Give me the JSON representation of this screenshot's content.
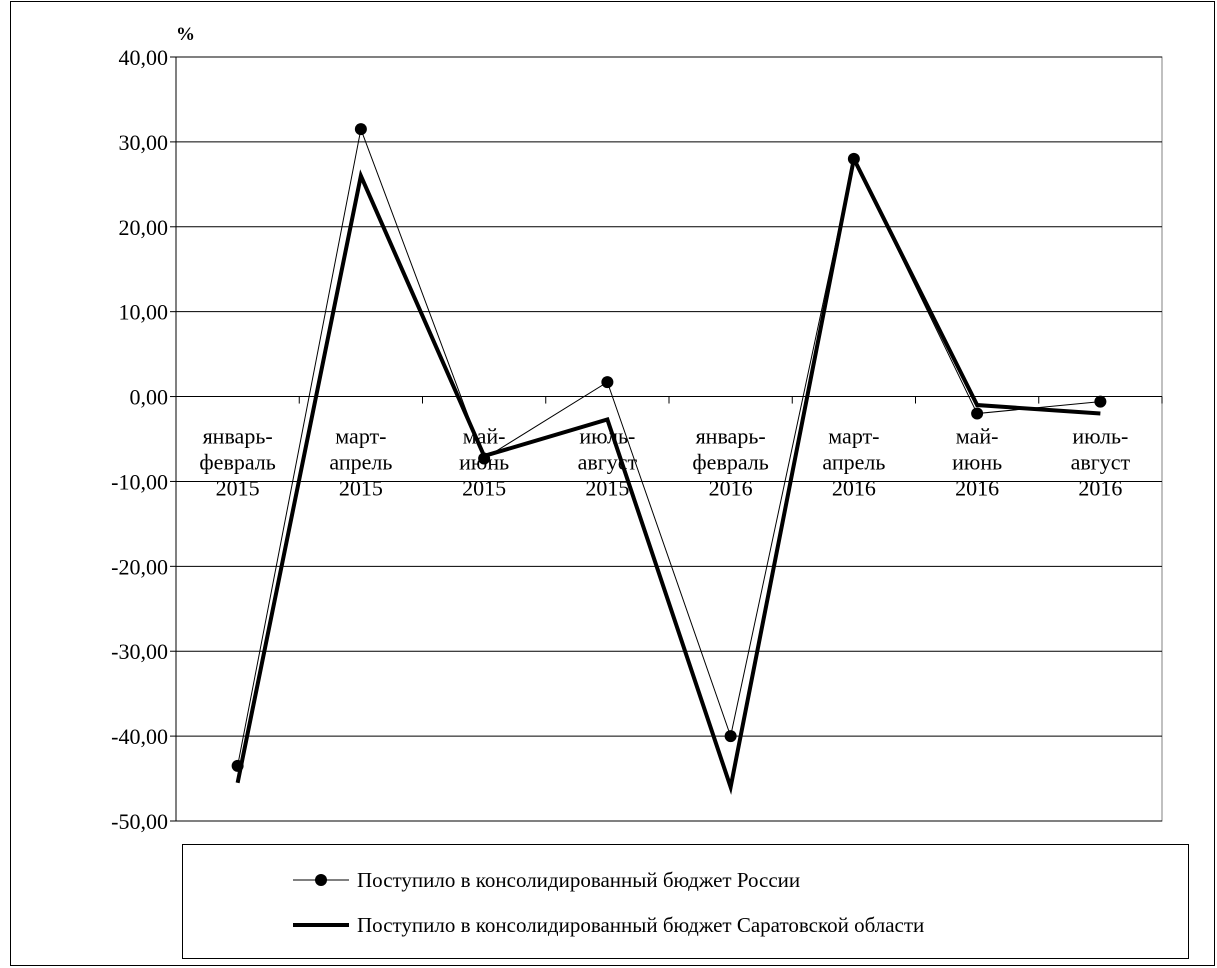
{
  "chart_data": {
    "type": "line",
    "unit": "%",
    "categories": [
      [
        "январь-",
        "февраль",
        "2015"
      ],
      [
        "март-",
        "апрель",
        "2015"
      ],
      [
        "май-",
        "июнь",
        "2015"
      ],
      [
        "июль-",
        "август",
        "2015"
      ],
      [
        "январь-",
        "февраль",
        "2016"
      ],
      [
        "март-",
        "апрель",
        "2016"
      ],
      [
        "май-",
        "июнь",
        "2016"
      ],
      [
        "июль-",
        "август",
        "2016"
      ]
    ],
    "ylim": [
      -50,
      40
    ],
    "yticks": [
      "40,00",
      "30,00",
      "20,00",
      "10,00",
      "0,00",
      "-10,00",
      "-20,00",
      "-30,00",
      "-40,00",
      "-50,00"
    ],
    "grid": true,
    "legend_position": "bottom",
    "series": [
      {
        "name": "Поступило в консолидированный бюджет России",
        "values": [
          -43.5,
          31.5,
          -7.3,
          1.7,
          -40.0,
          28.0,
          -2.0,
          -0.6
        ],
        "style": "thin-line-with-markers",
        "color": "#000000"
      },
      {
        "name": "Поступило в консолидированный бюджет Саратовской области",
        "values": [
          -45.5,
          26.0,
          -7.0,
          -2.7,
          -46.0,
          28.0,
          -1.0,
          -2.0
        ],
        "style": "thick-line",
        "color": "#000000"
      }
    ]
  }
}
